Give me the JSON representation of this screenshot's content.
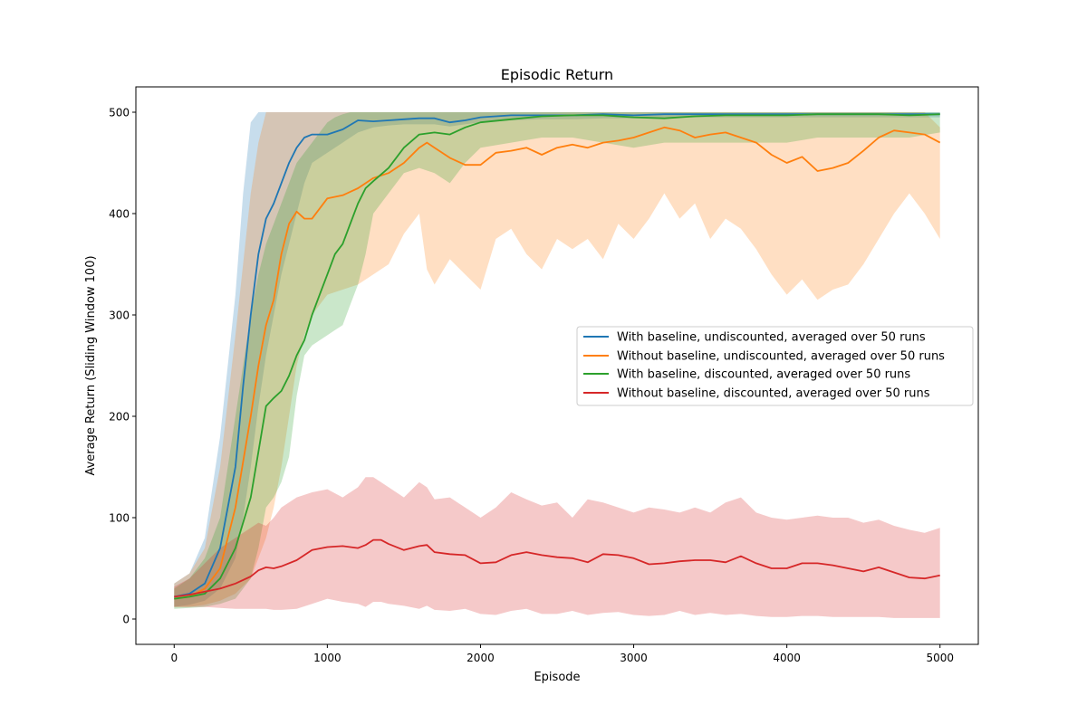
{
  "chart_data": {
    "type": "line",
    "title": "Episodic Return",
    "xlabel": "Episode",
    "ylabel": "Average Return (Sliding Window 100)",
    "xlim": [
      -250,
      5250
    ],
    "ylim": [
      -25,
      525
    ],
    "xticks": [
      0,
      1000,
      2000,
      3000,
      4000,
      5000
    ],
    "yticks": [
      0,
      100,
      200,
      300,
      400,
      500
    ],
    "grid": false,
    "legend_position": "center-right",
    "series": [
      {
        "name": "With baseline, undiscounted, averaged over 50 runs",
        "color": "#1f77b4",
        "band_opacity": 0.25,
        "x": [
          0,
          100,
          200,
          300,
          400,
          450,
          500,
          550,
          600,
          650,
          700,
          750,
          800,
          850,
          900,
          950,
          1000,
          1100,
          1200,
          1300,
          1400,
          1500,
          1600,
          1700,
          1800,
          1900,
          2000,
          2200,
          2400,
          2600,
          2800,
          3000,
          3200,
          3400,
          3600,
          3800,
          4000,
          4200,
          4400,
          4600,
          4800,
          5000
        ],
        "mean": [
          22,
          25,
          35,
          70,
          150,
          230,
          300,
          360,
          395,
          410,
          430,
          450,
          465,
          475,
          478,
          478,
          478,
          483,
          492,
          491,
          492,
          493,
          494,
          494,
          490,
          492,
          495,
          497,
          497,
          497,
          498,
          497,
          498,
          498,
          498,
          498,
          498,
          498,
          498,
          498,
          498,
          498
        ],
        "upper": [
          35,
          45,
          80,
          180,
          320,
          420,
          490,
          500,
          500,
          500,
          500,
          500,
          500,
          500,
          500,
          500,
          500,
          500,
          500,
          500,
          500,
          500,
          500,
          500,
          500,
          500,
          500,
          500,
          500,
          500,
          500,
          500,
          500,
          500,
          500,
          500,
          500,
          500,
          500,
          500,
          500,
          500
        ],
        "lower": [
          12,
          14,
          18,
          30,
          60,
          100,
          150,
          210,
          260,
          300,
          340,
          370,
          400,
          430,
          450,
          455,
          460,
          470,
          480,
          485,
          487,
          488,
          488,
          488,
          486,
          488,
          490,
          492,
          493,
          493,
          494,
          494,
          495,
          495,
          495,
          495,
          495,
          495,
          495,
          495,
          495,
          495
        ]
      },
      {
        "name": "Without baseline, undiscounted, averaged over 50 runs",
        "color": "#ff7f0e",
        "band_opacity": 0.25,
        "x": [
          0,
          100,
          200,
          300,
          400,
          500,
          550,
          600,
          650,
          700,
          750,
          800,
          850,
          900,
          950,
          1000,
          1100,
          1200,
          1300,
          1400,
          1500,
          1600,
          1650,
          1700,
          1800,
          1900,
          2000,
          2100,
          2200,
          2300,
          2400,
          2500,
          2600,
          2700,
          2800,
          2900,
          3000,
          3100,
          3200,
          3300,
          3400,
          3500,
          3600,
          3700,
          3800,
          3900,
          4000,
          4100,
          4200,
          4300,
          4400,
          4500,
          4600,
          4700,
          4800,
          4900,
          5000
        ],
        "mean": [
          20,
          22,
          30,
          50,
          110,
          200,
          250,
          290,
          315,
          360,
          390,
          402,
          395,
          395,
          405,
          415,
          418,
          425,
          435,
          440,
          450,
          465,
          470,
          465,
          455,
          448,
          448,
          460,
          462,
          465,
          458,
          465,
          468,
          465,
          470,
          472,
          475,
          480,
          485,
          482,
          475,
          478,
          480,
          475,
          470,
          458,
          450,
          456,
          442,
          445,
          450,
          462,
          475,
          482,
          480,
          478,
          470
        ],
        "upper": [
          35,
          45,
          70,
          150,
          280,
          420,
          470,
          500,
          500,
          500,
          500,
          500,
          500,
          500,
          500,
          500,
          500,
          500,
          500,
          500,
          500,
          500,
          500,
          500,
          500,
          500,
          500,
          500,
          500,
          500,
          500,
          500,
          500,
          500,
          500,
          500,
          500,
          500,
          500,
          500,
          500,
          500,
          500,
          500,
          500,
          500,
          500,
          500,
          500,
          500,
          500,
          500,
          500,
          500,
          500,
          500,
          485
        ],
        "lower": [
          12,
          12,
          14,
          18,
          25,
          40,
          60,
          80,
          110,
          150,
          200,
          250,
          280,
          300,
          310,
          320,
          325,
          330,
          340,
          350,
          380,
          400,
          345,
          330,
          355,
          340,
          325,
          375,
          385,
          360,
          345,
          375,
          365,
          375,
          355,
          390,
          375,
          395,
          420,
          395,
          410,
          375,
          395,
          385,
          365,
          340,
          320,
          335,
          315,
          325,
          330,
          350,
          375,
          400,
          420,
          400,
          375
        ]
      },
      {
        "name": "With baseline, discounted, averaged over 50 runs",
        "color": "#2ca02c",
        "band_opacity": 0.25,
        "x": [
          0,
          100,
          200,
          300,
          400,
          500,
          550,
          600,
          650,
          700,
          750,
          800,
          850,
          900,
          950,
          1000,
          1050,
          1100,
          1150,
          1200,
          1250,
          1300,
          1400,
          1500,
          1600,
          1700,
          1800,
          1900,
          2000,
          2200,
          2400,
          2600,
          2800,
          3000,
          3200,
          3400,
          3600,
          3800,
          4000,
          4200,
          4400,
          4600,
          4800,
          5000
        ],
        "mean": [
          20,
          22,
          25,
          40,
          70,
          120,
          165,
          210,
          218,
          225,
          240,
          260,
          275,
          300,
          320,
          340,
          360,
          370,
          390,
          410,
          425,
          432,
          445,
          465,
          478,
          480,
          478,
          485,
          490,
          493,
          496,
          497,
          497,
          495,
          494,
          496,
          497,
          497,
          497,
          498,
          498,
          498,
          497,
          498
        ],
        "upper": [
          30,
          40,
          60,
          100,
          200,
          300,
          340,
          370,
          390,
          410,
          430,
          450,
          460,
          470,
          480,
          490,
          495,
          498,
          500,
          500,
          500,
          500,
          500,
          500,
          500,
          500,
          500,
          500,
          500,
          500,
          500,
          500,
          500,
          500,
          500,
          500,
          500,
          500,
          500,
          500,
          500,
          500,
          500,
          500
        ],
        "lower": [
          10,
          11,
          12,
          15,
          20,
          40,
          70,
          110,
          120,
          135,
          160,
          220,
          260,
          270,
          275,
          280,
          285,
          290,
          310,
          330,
          360,
          400,
          420,
          440,
          445,
          440,
          430,
          450,
          465,
          470,
          475,
          475,
          470,
          465,
          470,
          470,
          470,
          470,
          470,
          475,
          475,
          475,
          475,
          480
        ]
      },
      {
        "name": "Without baseline, discounted, averaged over 50 runs",
        "color": "#d62728",
        "band_opacity": 0.25,
        "x": [
          0,
          100,
          200,
          300,
          400,
          500,
          550,
          600,
          650,
          700,
          800,
          900,
          1000,
          1100,
          1200,
          1250,
          1300,
          1350,
          1400,
          1500,
          1600,
          1650,
          1700,
          1800,
          1900,
          2000,
          2100,
          2200,
          2300,
          2400,
          2500,
          2600,
          2700,
          2800,
          2900,
          3000,
          3100,
          3200,
          3300,
          3400,
          3500,
          3600,
          3700,
          3800,
          3900,
          4000,
          4100,
          4200,
          4300,
          4400,
          4500,
          4600,
          4700,
          4800,
          4900,
          5000
        ],
        "mean": [
          22,
          24,
          27,
          30,
          35,
          42,
          48,
          51,
          50,
          52,
          58,
          68,
          71,
          72,
          70,
          73,
          78,
          78,
          74,
          68,
          72,
          73,
          66,
          64,
          63,
          55,
          56,
          63,
          66,
          63,
          61,
          60,
          56,
          64,
          63,
          60,
          54,
          55,
          57,
          58,
          58,
          56,
          62,
          55,
          50,
          50,
          55,
          55,
          53,
          50,
          47,
          51,
          46,
          41,
          40,
          43
        ],
        "upper": [
          32,
          40,
          55,
          70,
          80,
          90,
          95,
          92,
          100,
          110,
          120,
          125,
          128,
          120,
          130,
          140,
          140,
          135,
          130,
          120,
          135,
          130,
          118,
          120,
          110,
          100,
          110,
          125,
          118,
          112,
          115,
          100,
          118,
          115,
          110,
          105,
          110,
          108,
          105,
          110,
          105,
          115,
          120,
          105,
          100,
          98,
          100,
          102,
          100,
          100,
          95,
          98,
          92,
          88,
          85,
          90
        ],
        "lower": [
          12,
          12,
          12,
          11,
          10,
          10,
          10,
          10,
          9,
          9,
          10,
          15,
          20,
          17,
          15,
          12,
          17,
          17,
          15,
          13,
          10,
          13,
          9,
          8,
          10,
          5,
          4,
          8,
          10,
          5,
          5,
          8,
          4,
          6,
          7,
          4,
          3,
          4,
          8,
          4,
          6,
          4,
          5,
          3,
          2,
          2,
          3,
          3,
          2,
          2,
          2,
          2,
          1,
          1,
          1,
          1
        ]
      }
    ]
  }
}
